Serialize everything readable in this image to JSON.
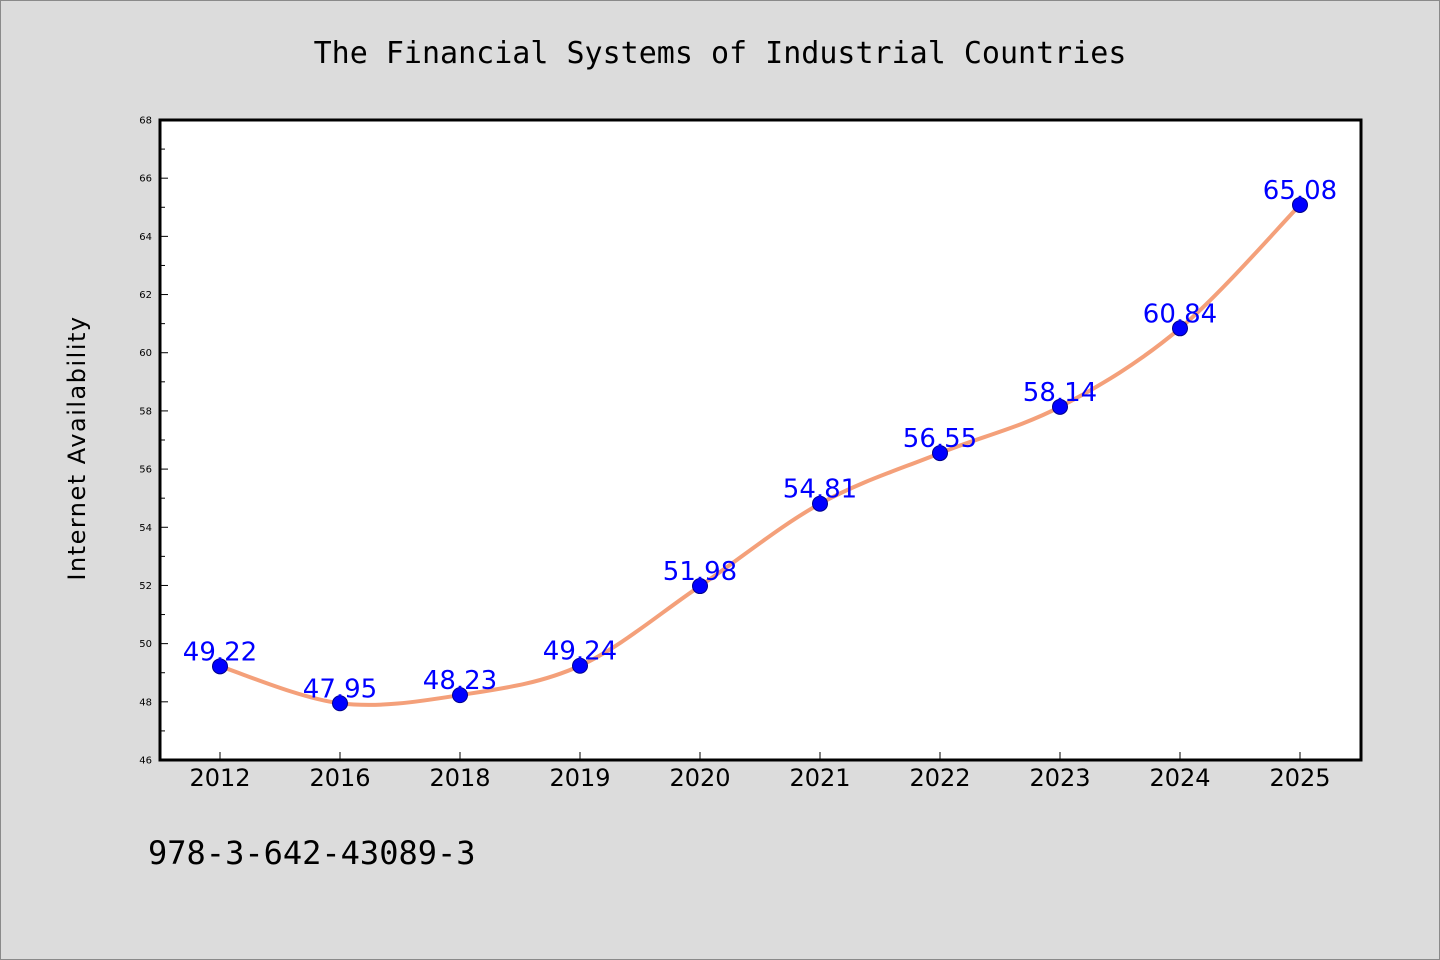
{
  "title": "The Financial Systems of Industrial Countries",
  "isbn": "978-3-642-43089-3",
  "colors": {
    "background": "#dcdcdc",
    "plot_background": "#ffffff",
    "line": "#f4a07a",
    "marker": "#0000ff",
    "data_label": "#0000ff"
  },
  "chart_data": {
    "type": "line",
    "title": "The Financial Systems of Industrial Countries",
    "xlabel": "",
    "ylabel": "Internet Availability",
    "categories": [
      "2012",
      "2016",
      "2018",
      "2019",
      "2020",
      "2021",
      "2022",
      "2023",
      "2024",
      "2025"
    ],
    "series": [
      {
        "values": [
          49.22,
          47.95,
          48.23,
          49.24,
          51.98,
          54.81,
          56.55,
          58.14,
          60.84,
          65.08
        ]
      }
    ],
    "data_labels": [
      "49.22",
      "47.95",
      "48.23",
      "49.24",
      "51.98",
      "54.81",
      "56.55",
      "58.14",
      "60.84",
      "65.08"
    ],
    "ylim": [
      46,
      68
    ],
    "yticks": [
      "46",
      "48",
      "50",
      "52",
      "54",
      "56",
      "58",
      "60",
      "62",
      "64",
      "66",
      "68"
    ],
    "grid": false,
    "legend": "none",
    "marker": "circle"
  }
}
